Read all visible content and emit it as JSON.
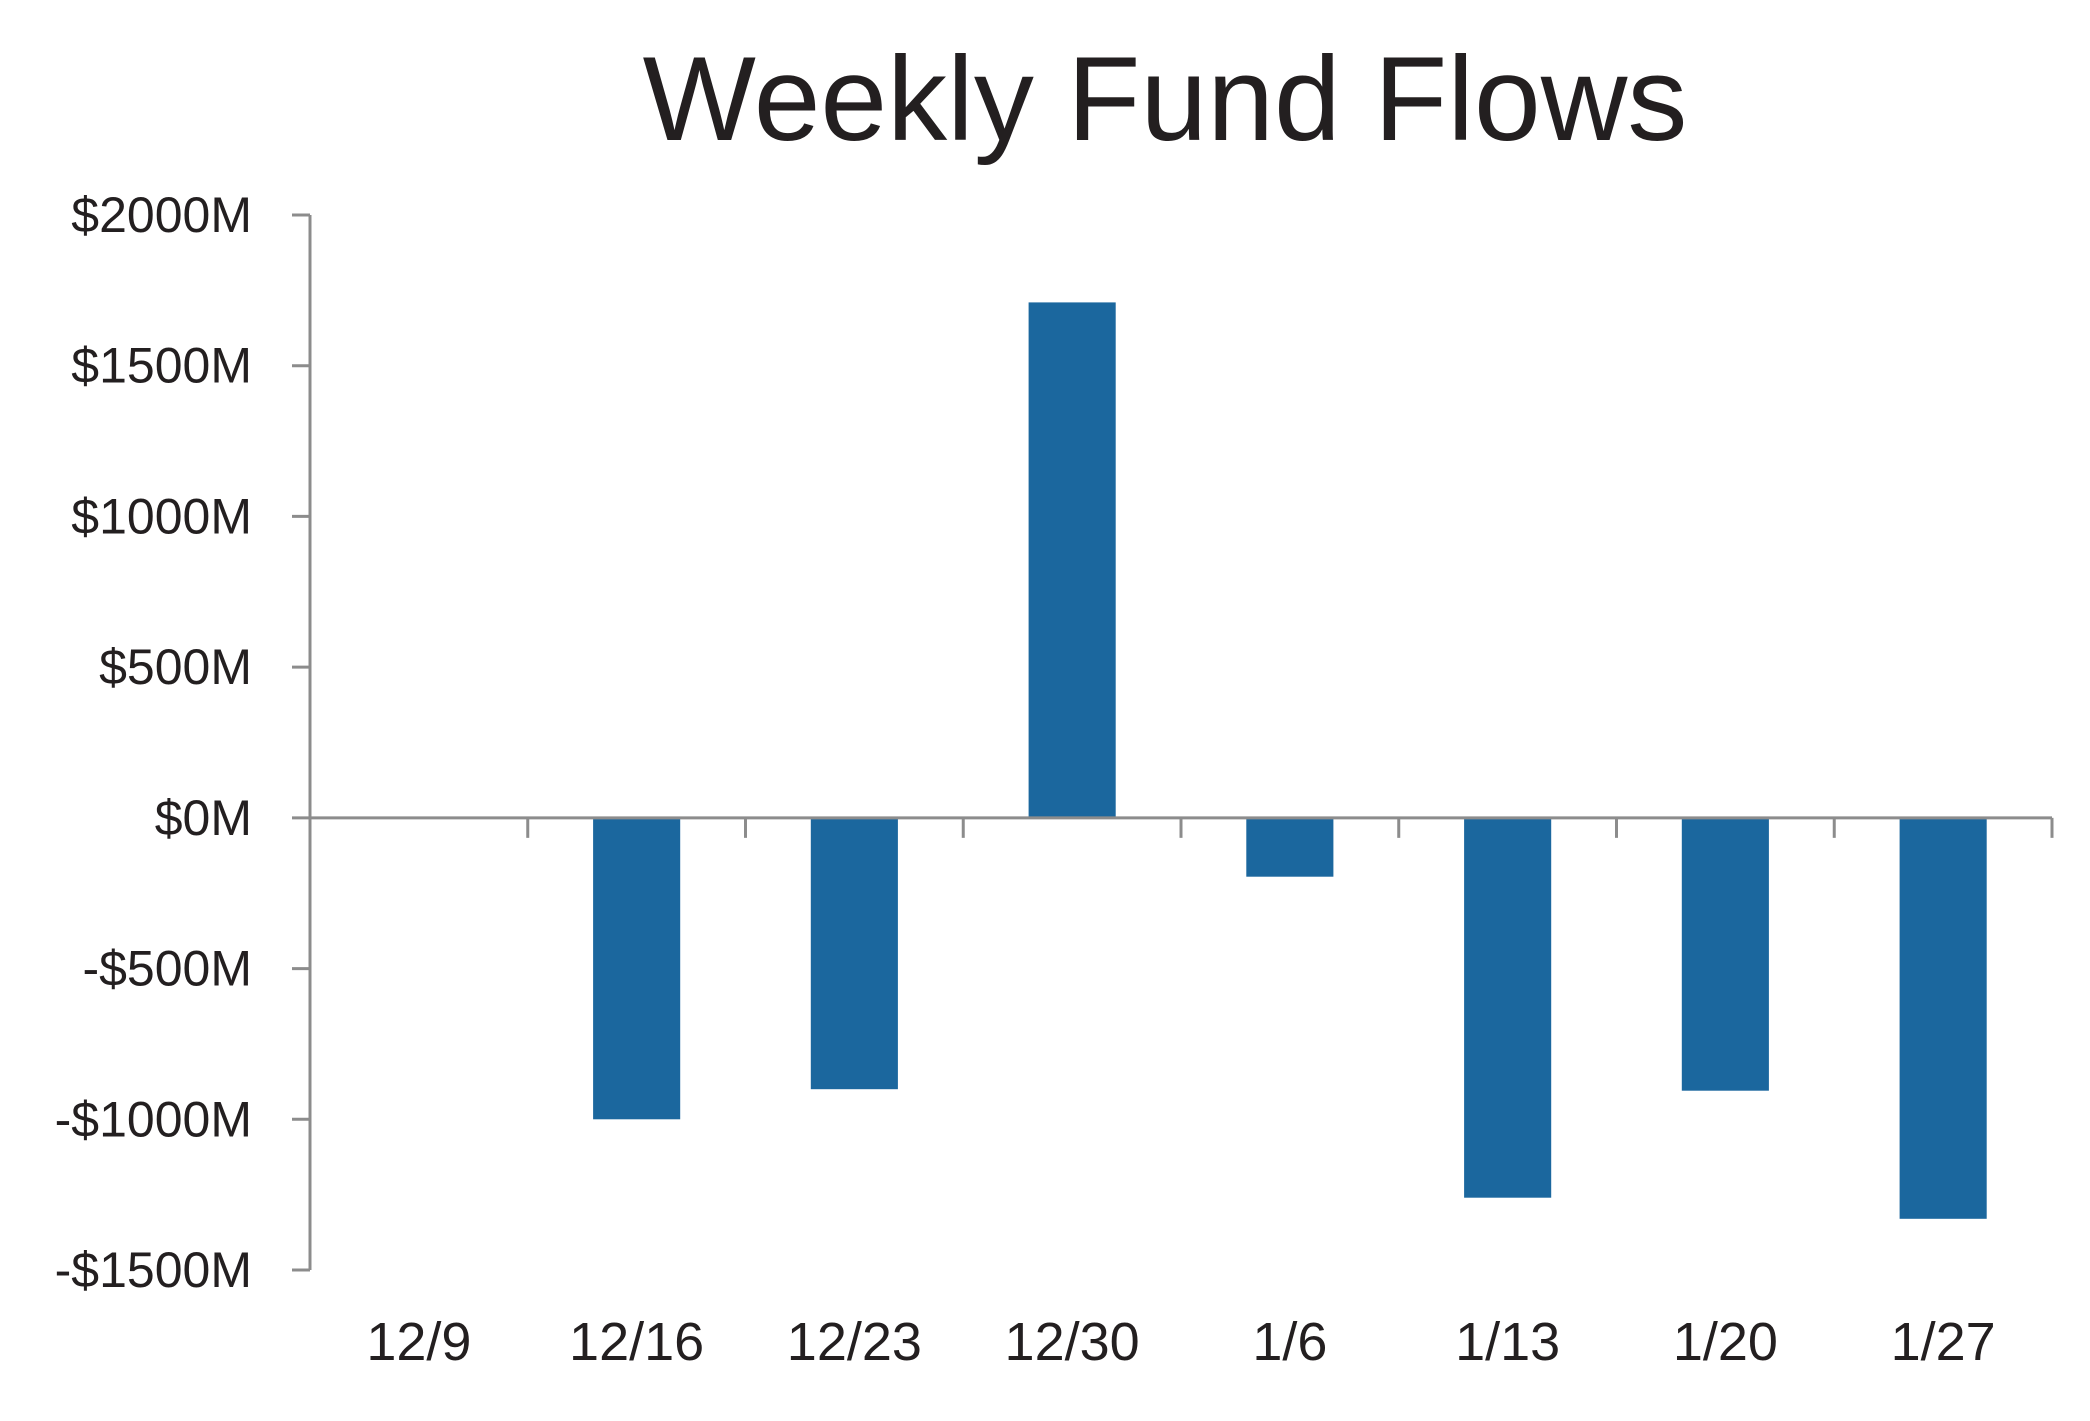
{
  "chart_data": {
    "type": "bar",
    "title": "Weekly Fund Flows",
    "xlabel": "",
    "ylabel": "",
    "categories": [
      "12/9",
      "12/16",
      "12/23",
      "12/30",
      "1/6",
      "1/13",
      "1/20",
      "1/27"
    ],
    "values": [
      0,
      -1000,
      -900,
      1710,
      -195,
      -1260,
      -905,
      -1330
    ],
    "ylim": [
      -1500,
      2000
    ],
    "yticks": [
      2000,
      1500,
      1000,
      500,
      0,
      -500,
      -1000,
      -1500
    ],
    "ytick_labels": [
      "$2000M",
      "$1500M",
      "$1000M",
      "$500M",
      "$0M",
      "-$500M",
      "-$1000M",
      "-$1500M"
    ],
    "grid": false,
    "legend": "none",
    "colors": {
      "bar": "#1b679e",
      "axis": "#8c8c8c",
      "text": "#231f20"
    }
  }
}
